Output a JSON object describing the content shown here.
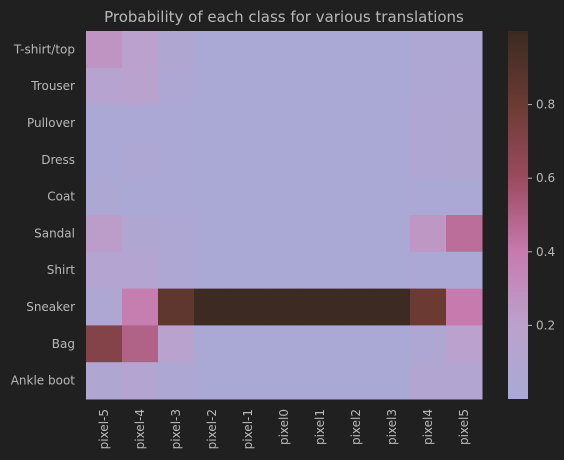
{
  "chart_data": {
    "type": "heatmap",
    "title": "Probability of each class for various translations",
    "xlabel": "",
    "ylabel": "",
    "x_categories": [
      "pixel-5",
      "pixel-4",
      "pixel-3",
      "pixel-2",
      "pixel-1",
      "pixel0",
      "pixel1",
      "pixel2",
      "pixel3",
      "pixel4",
      "pixel5"
    ],
    "y_categories": [
      "T-shirt/top",
      "Trouser",
      "Pullover",
      "Dress",
      "Coat",
      "Sandal",
      "Shirt",
      "Sneaker",
      "Bag",
      "Ankle boot"
    ],
    "values": [
      [
        0.27,
        0.2,
        0.08,
        0.01,
        0.01,
        0.01,
        0.01,
        0.01,
        0.01,
        0.05,
        0.06
      ],
      [
        0.15,
        0.18,
        0.06,
        0.01,
        0.01,
        0.01,
        0.01,
        0.01,
        0.01,
        0.06,
        0.07
      ],
      [
        0.03,
        0.03,
        0.02,
        0.01,
        0.01,
        0.01,
        0.01,
        0.01,
        0.01,
        0.07,
        0.08
      ],
      [
        0.03,
        0.05,
        0.03,
        0.01,
        0.01,
        0.01,
        0.01,
        0.01,
        0.01,
        0.07,
        0.08
      ],
      [
        0.04,
        0.03,
        0.02,
        0.01,
        0.01,
        0.01,
        0.01,
        0.01,
        0.01,
        0.03,
        0.03
      ],
      [
        0.22,
        0.08,
        0.05,
        0.01,
        0.01,
        0.01,
        0.01,
        0.01,
        0.01,
        0.25,
        0.45
      ],
      [
        0.12,
        0.12,
        0.05,
        0.01,
        0.01,
        0.01,
        0.01,
        0.01,
        0.01,
        0.02,
        0.02
      ],
      [
        0.06,
        0.38,
        0.85,
        0.99,
        0.99,
        0.99,
        0.99,
        0.99,
        0.99,
        0.8,
        0.4
      ],
      [
        0.7,
        0.5,
        0.18,
        0.01,
        0.01,
        0.01,
        0.01,
        0.01,
        0.01,
        0.05,
        0.2
      ],
      [
        0.08,
        0.12,
        0.04,
        0.01,
        0.01,
        0.01,
        0.01,
        0.01,
        0.01,
        0.1,
        0.1
      ]
    ],
    "colorbar": {
      "min": 0.0,
      "max": 1.0,
      "ticks": [
        0.2,
        0.4,
        0.6,
        0.8
      ],
      "tick_labels": [
        "0.2",
        "0.4",
        "0.6",
        "0.8"
      ]
    },
    "colormap_stops": [
      {
        "v": 0.0,
        "color": "#a9a9d6"
      },
      {
        "v": 0.2,
        "color": "#bba1cd"
      },
      {
        "v": 0.4,
        "color": "#c77aae"
      },
      {
        "v": 0.6,
        "color": "#9b4a5f"
      },
      {
        "v": 0.8,
        "color": "#6b3b33"
      },
      {
        "v": 1.0,
        "color": "#3b2a22"
      }
    ]
  },
  "colors": {
    "background": "#202020",
    "text": "#b8b8b8"
  }
}
